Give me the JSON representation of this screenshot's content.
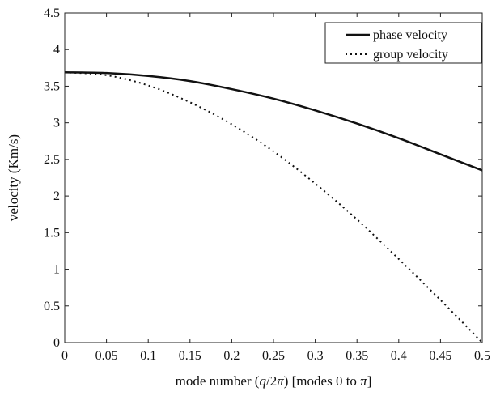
{
  "chart_data": {
    "type": "line",
    "title": "",
    "xlabel": "mode number (q/2π)  [modes 0 to π]",
    "xlabel_parts": {
      "prefix": "mode number (",
      "q": "q",
      "slash": "/2",
      "pi": "π",
      "suffix": ")  [modes 0 to ",
      "pi2": "π",
      "end": "]"
    },
    "ylabel": "velocity (Km/s)",
    "xlim": [
      0,
      0.5
    ],
    "ylim": [
      0,
      4.5
    ],
    "xticks": [
      0,
      0.05,
      0.1,
      0.15,
      0.2,
      0.25,
      0.3,
      0.35,
      0.4,
      0.45,
      0.5
    ],
    "xtick_labels": [
      "0",
      "0.05",
      "0.1",
      "0.15",
      "0.2",
      "0.25",
      "0.3",
      "0.35",
      "0.4",
      "0.45",
      "0.5"
    ],
    "yticks": [
      0,
      0.5,
      1,
      1.5,
      2,
      2.5,
      3,
      3.5,
      4,
      4.5
    ],
    "ytick_labels": [
      "0",
      "0.5",
      "1",
      "1.5",
      "2",
      "2.5",
      "3",
      "3.5",
      "4",
      "4.5"
    ],
    "grid": false,
    "legend_position": "top-right",
    "series": [
      {
        "name": "phase velocity",
        "style": "solid",
        "x": [
          0,
          0.05,
          0.1,
          0.15,
          0.2,
          0.25,
          0.3,
          0.35,
          0.4,
          0.45,
          0.5
        ],
        "y": [
          3.69,
          3.68,
          3.64,
          3.57,
          3.46,
          3.33,
          3.17,
          2.99,
          2.79,
          2.57,
          2.35
        ]
      },
      {
        "name": "group velocity",
        "style": "dotted",
        "x": [
          0,
          0.05,
          0.1,
          0.15,
          0.2,
          0.25,
          0.3,
          0.35,
          0.4,
          0.45,
          0.5
        ],
        "y": [
          3.69,
          3.65,
          3.51,
          3.28,
          2.98,
          2.61,
          2.17,
          1.68,
          1.14,
          0.58,
          0
        ]
      }
    ],
    "colors": {
      "line": "#111111",
      "frame": "#222222"
    }
  }
}
